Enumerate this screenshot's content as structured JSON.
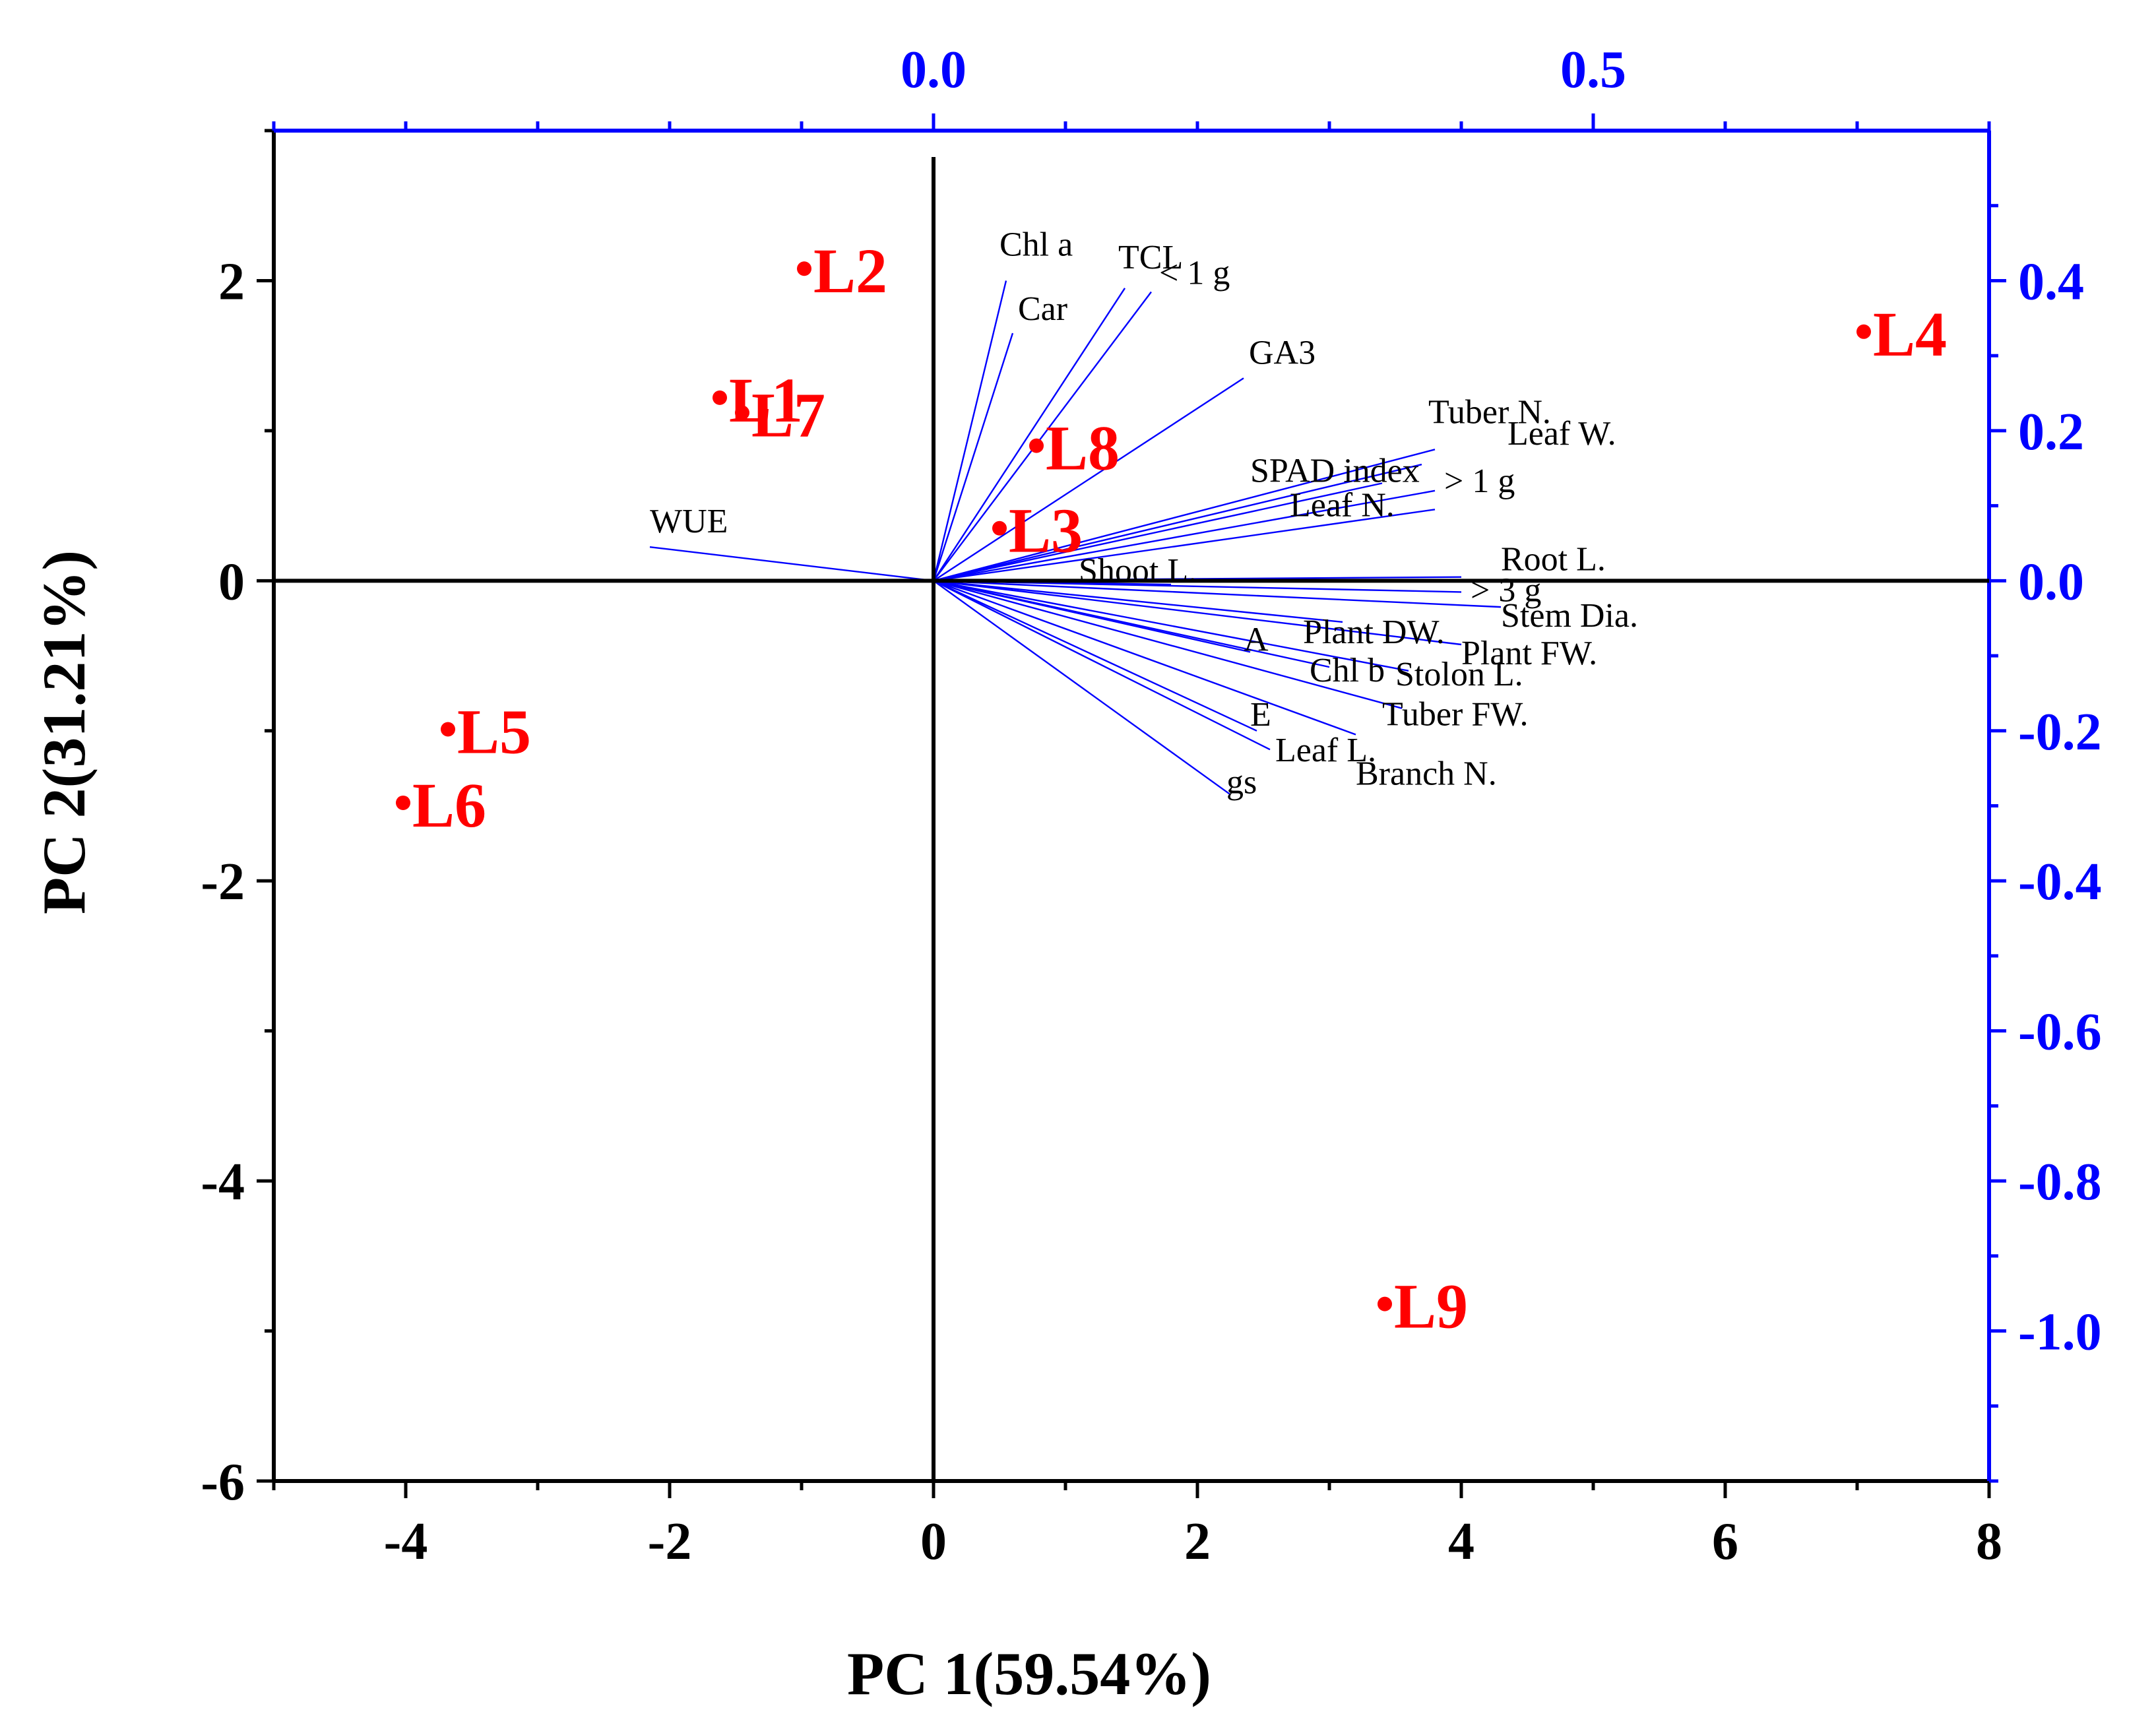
{
  "chart_data": {
    "type": "scatter",
    "subtype": "biplot",
    "title": "",
    "xlabel": "PC 1(59.54%)",
    "ylabel": "PC 2(31.21%)",
    "xlim": [
      -5,
      8
    ],
    "ylim": [
      -6,
      3
    ],
    "x_ticks": [
      -4,
      -2,
      0,
      2,
      4,
      6,
      8
    ],
    "y_ticks": [
      -6,
      -4,
      -2,
      0,
      2
    ],
    "top_axis": {
      "range": [
        -0.5,
        0.8
      ],
      "ticks": [
        0.0,
        0.5
      ],
      "labels": [
        "0.0",
        "0.5"
      ],
      "color": "#0000ff"
    },
    "right_axis": {
      "range": [
        -1.2,
        0.6
      ],
      "ticks": [
        -1.0,
        -0.8,
        -0.6,
        -0.4,
        -0.2,
        0.0,
        0.2,
        0.4
      ],
      "labels": [
        "-1.0",
        "-0.8",
        "-0.6",
        "-0.4",
        "-0.2",
        "0.0",
        "0.2",
        "0.4"
      ],
      "color": "#0000ff"
    },
    "grid": false,
    "colors": {
      "scores": "#ff0000",
      "loadings": "#0000ff",
      "axes": "#000000",
      "secondary_axes": "#0000ff"
    },
    "scores": [
      {
        "name": "L1",
        "x": -1.62,
        "y": 1.22
      },
      {
        "name": "L2",
        "x": -0.98,
        "y": 2.08
      },
      {
        "name": "L3",
        "x": 0.5,
        "y": 0.35
      },
      {
        "name": "L4",
        "x": 7.05,
        "y": 1.66
      },
      {
        "name": "L5",
        "x": -3.68,
        "y": -0.99
      },
      {
        "name": "L6",
        "x": -4.02,
        "y": -1.48
      },
      {
        "name": "L7",
        "x": -1.45,
        "y": 1.12
      },
      {
        "name": "L8",
        "x": 0.78,
        "y": 0.9
      },
      {
        "name": "L9",
        "x": 3.42,
        "y": -4.82
      }
    ],
    "loadings": [
      {
        "name": "Chl a",
        "x": 0.055,
        "y": 0.4
      },
      {
        "name": "TCL",
        "x": 0.145,
        "y": 0.39
      },
      {
        "name": "< 1 g",
        "x": 0.165,
        "y": 0.385
      },
      {
        "name": "Car",
        "x": 0.06,
        "y": 0.33
      },
      {
        "name": "GA3",
        "x": 0.235,
        "y": 0.27
      },
      {
        "name": "Tuber N.",
        "x": 0.38,
        "y": 0.175
      },
      {
        "name": "Leaf W.",
        "x": 0.37,
        "y": 0.155
      },
      {
        "name": "SPAD index",
        "x": 0.34,
        "y": 0.13
      },
      {
        "name": "> 1 g",
        "x": 0.38,
        "y": 0.12
      },
      {
        "name": "Leaf N.",
        "x": 0.38,
        "y": 0.095
      },
      {
        "name": "WUE",
        "x": -0.215,
        "y": 0.045
      },
      {
        "name": "Root L.",
        "x": 0.4,
        "y": 0.005
      },
      {
        "name": "Shoot L.",
        "x": 0.18,
        "y": -0.005
      },
      {
        "name": "> 3 g",
        "x": 0.4,
        "y": -0.015
      },
      {
        "name": "Stem Dia.",
        "x": 0.43,
        "y": -0.035
      },
      {
        "name": "Plant DW.",
        "x": 0.31,
        "y": -0.055
      },
      {
        "name": "Plant FW.",
        "x": 0.4,
        "y": -0.085
      },
      {
        "name": "A",
        "x": 0.24,
        "y": -0.095
      },
      {
        "name": "Chl b",
        "x": 0.3,
        "y": -0.115
      },
      {
        "name": "Stolon L.",
        "x": 0.36,
        "y": -0.12
      },
      {
        "name": "Tuber FW.",
        "x": 0.355,
        "y": -0.17
      },
      {
        "name": "Branch N.",
        "x": 0.32,
        "y": -0.205
      },
      {
        "name": "E",
        "x": 0.245,
        "y": -0.2
      },
      {
        "name": "Leaf L.",
        "x": 0.255,
        "y": -0.225
      },
      {
        "name": "gs",
        "x": 0.225,
        "y": -0.285
      }
    ]
  }
}
